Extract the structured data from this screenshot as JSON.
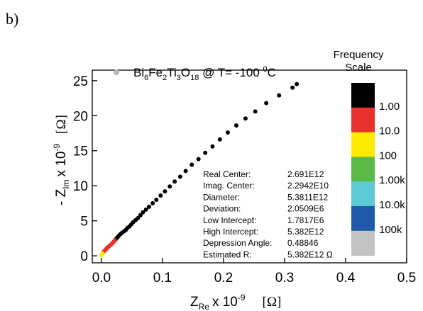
{
  "panel_label": "b)",
  "colors": {
    "point_black": "#000000",
    "point_red": "#e8302e",
    "point_yellow": "#ffea00",
    "legend_marker": "#b5b5b5"
  },
  "chart_data": {
    "type": "scatter",
    "xlabel_main": "Z",
    "xlabel_sub": "Re",
    "xlabel_mult": "x 10",
    "xlabel_exp": "-9",
    "xlabel_unit": "[Ω]",
    "ylabel_prefix": "- Z",
    "ylabel_sub": "Im",
    "ylabel_mult": "x 10",
    "ylabel_exp": "-9",
    "ylabel_unit": "[Ω]",
    "xlim": [
      -0.015,
      0.5
    ],
    "ylim": [
      -1,
      26.5
    ],
    "xticks": [
      0.0,
      0.1,
      0.2,
      0.3,
      0.4,
      0.5
    ],
    "xtick_labels": [
      "0.0",
      "0.1",
      "0.2",
      "0.3",
      "0.4",
      "0.5"
    ],
    "yticks": [
      0,
      5,
      10,
      15,
      20,
      25
    ],
    "ytick_labels": [
      "0",
      "5",
      "10",
      "15",
      "20",
      "25"
    ],
    "grid": false,
    "legend": {
      "placement": "top-left",
      "base1": "Bi",
      "sub1": "6",
      "base2": "Fe",
      "sub2": "2",
      "base3": "Ti",
      "sub3": "3",
      "base4": "O",
      "sub4": "18",
      "condition": " @ T= -100 ",
      "degree": "0",
      "unit": "C"
    },
    "series": [
      {
        "color": "#000000",
        "x": [
          0.32,
          0.313,
          0.291,
          0.27,
          0.252,
          0.236,
          0.221,
          0.207,
          0.194,
          0.182,
          0.17,
          0.159,
          0.148,
          0.138,
          0.129,
          0.12,
          0.112,
          0.104,
          0.097,
          0.09,
          0.084,
          0.078,
          0.073,
          0.068,
          0.064,
          0.06,
          0.056,
          0.052,
          0.049,
          0.046,
          0.043,
          0.04,
          0.037,
          0.034,
          0.031,
          0.028,
          0.026,
          0.024
        ],
        "y": [
          24.5,
          24.0,
          22.9,
          21.8,
          20.6,
          19.6,
          18.6,
          17.6,
          16.6,
          15.6,
          14.7,
          13.8,
          13.0,
          12.1,
          11.3,
          10.6,
          9.9,
          9.2,
          8.6,
          8.0,
          7.5,
          7.0,
          6.6,
          6.2,
          5.8,
          5.4,
          5.1,
          4.8,
          4.5,
          4.2,
          4.0,
          3.7,
          3.5,
          3.3,
          3.1,
          2.8,
          2.6,
          2.4
        ]
      },
      {
        "color": "#e8302e",
        "x": [
          0.022,
          0.02,
          0.018,
          0.016,
          0.014,
          0.012,
          0.01,
          0.008,
          0.007,
          0.006,
          0.005,
          0.004,
          0.003
        ],
        "y": [
          2.2,
          2.0,
          1.8,
          1.6,
          1.5,
          1.3,
          1.2,
          1.0,
          0.9,
          0.8,
          0.7,
          0.6,
          0.5
        ]
      },
      {
        "color": "#ffea00",
        "x": [
          0.002,
          0.001,
          0.0
        ],
        "y": [
          0.35,
          0.2,
          0.1
        ]
      }
    ],
    "fit_results": [
      {
        "label": "Real Center:",
        "value": "2.691E12"
      },
      {
        "label": "Imag. Center:",
        "value": "2.2942E10"
      },
      {
        "label": "Diameter:",
        "value": "5.3811E12"
      },
      {
        "label": "Deviation:",
        "value": "2.0509E6"
      },
      {
        "label": "Low Intercept:",
        "value": "1.7817E6"
      },
      {
        "label": "High Intercept:",
        "value": "5.382E12"
      },
      {
        "label": "Depression Angle:",
        "value": "0.48846"
      },
      {
        "label": "Estimated R:",
        "value": "5.382E12 Ω"
      }
    ],
    "frequency_scale": {
      "title_line1": "Frequency",
      "title_line2": "Scale",
      "segments": [
        {
          "color": "#000000",
          "label": "1.00"
        },
        {
          "color": "#e8302e",
          "label": "10.0"
        },
        {
          "color": "#ffea00",
          "label": "100"
        },
        {
          "color": "#5cb947",
          "label": "1.00k"
        },
        {
          "color": "#5ccbd6",
          "label": "10.0k"
        },
        {
          "color": "#1f5aa8",
          "label": "100k"
        },
        {
          "color": "#c3c3c3",
          "label": ""
        }
      ]
    }
  }
}
